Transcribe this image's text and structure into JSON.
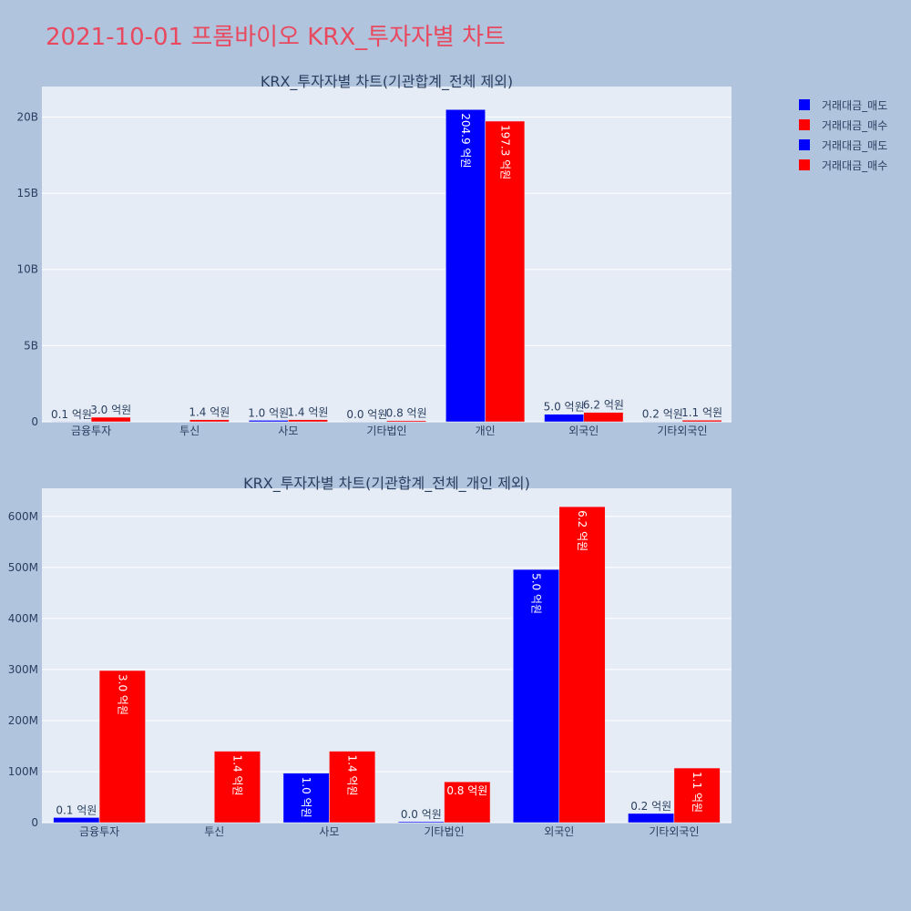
{
  "page_title": "2021-10-01 프롬바이오 KRX_투자자별 차트",
  "colors": {
    "background": "#b0c4de",
    "plot_bg": "#e5ecf6",
    "title": "#e8495f",
    "sell": "#0000ff",
    "buy": "#ff0000",
    "text": "#2a3f5f",
    "grid": "#ffffff"
  },
  "legend": {
    "placement": "top-right",
    "entries": [
      {
        "name": "거래대금_매도",
        "color": "#0000ff"
      },
      {
        "name": "거래대금_매수",
        "color": "#ff0000"
      },
      {
        "name": "거래대금_매도",
        "color": "#0000ff"
      },
      {
        "name": "거래대금_매수",
        "color": "#ff0000"
      }
    ]
  },
  "chart_data": [
    {
      "type": "bar",
      "title": "KRX_투자자별 차트(기관합계_전체 제외)",
      "categories": [
        "금융투자",
        "투신",
        "사모",
        "기타법인",
        "개인",
        "외국인",
        "기타외국인"
      ],
      "series": [
        {
          "name": "거래대금_매도",
          "values": [
            10000000,
            0,
            97000000,
            2000000,
            20490000000,
            496000000,
            18000000
          ],
          "labels": [
            "0.1 억원",
            "",
            "1.0 억원",
            "0.0 억원",
            "204.9 억원",
            "5.0 억원",
            "0.2 억원"
          ]
        },
        {
          "name": "거래대금_매수",
          "values": [
            298000000,
            140000000,
            140000000,
            80000000,
            19730000000,
            619000000,
            107000000
          ],
          "labels": [
            "3.0 억원",
            "1.4 억원",
            "1.4 억원",
            "0.8 억원",
            "197.3 억원",
            "6.2 억원",
            "1.1 억원"
          ]
        }
      ],
      "ylim": [
        0,
        22000000000
      ],
      "yticks": [
        0,
        5000000000,
        10000000000,
        15000000000,
        20000000000
      ],
      "ytick_labels": [
        "0",
        "5B",
        "10B",
        "15B",
        "20B"
      ],
      "grid": true
    },
    {
      "type": "bar",
      "title": "KRX_투자자별 차트(기관합계_전체_개인 제외)",
      "categories": [
        "금융투자",
        "투신",
        "사모",
        "기타법인",
        "외국인",
        "기타외국인"
      ],
      "series": [
        {
          "name": "거래대금_매도",
          "values": [
            10000000,
            0,
            97000000,
            2000000,
            496000000,
            18000000
          ],
          "labels": [
            "0.1 억원",
            "",
            "1.0 억원",
            "0.0 억원",
            "5.0 억원",
            "0.2 억원"
          ]
        },
        {
          "name": "거래대금_매수",
          "values": [
            298000000,
            140000000,
            140000000,
            80000000,
            619000000,
            107000000
          ],
          "labels": [
            "3.0 억원",
            "1.4 억원",
            "1.4 억원",
            "0.8 억원",
            "6.2 억원",
            "1.1 억원"
          ]
        }
      ],
      "ylim": [
        0,
        655000000
      ],
      "yticks": [
        0,
        100000000,
        200000000,
        300000000,
        400000000,
        500000000,
        600000000
      ],
      "ytick_labels": [
        "0",
        "100M",
        "200M",
        "300M",
        "400M",
        "500M",
        "600M"
      ],
      "grid": true
    }
  ]
}
